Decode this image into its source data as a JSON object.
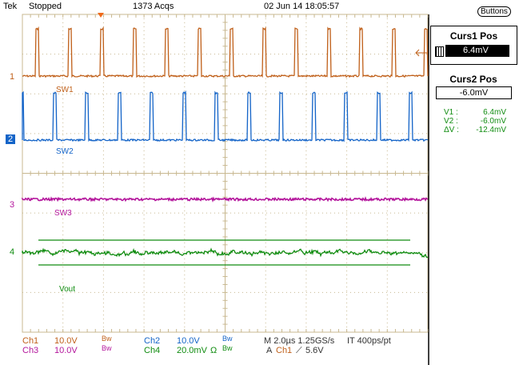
{
  "header": {
    "brand": "Tek",
    "state": "Stopped",
    "acqs": "1373 Acqs",
    "datetime": "02 Jun 14 18:05:57",
    "buttons_label": "Buttons"
  },
  "channels": [
    {
      "marker": "1",
      "label": "SW1",
      "color": "#c0601a"
    },
    {
      "marker": "2",
      "label": "SW2",
      "color": "#1464c8"
    },
    {
      "marker": "3",
      "label": "SW3",
      "color": "#b4169c"
    },
    {
      "marker": "4",
      "label": "Vout",
      "color": "#108c10"
    }
  ],
  "cursors": {
    "curs1_title": "Curs1 Pos",
    "curs1_value": "6.4mV",
    "curs2_title": "Curs2 Pos",
    "curs2_value": "-6.0mV",
    "readouts": [
      {
        "k": "V1 :",
        "v": "6.4mV"
      },
      {
        "k": "V2 :",
        "v": "-6.0mV"
      },
      {
        "k": "ΔV :",
        "v": "-12.4mV"
      }
    ]
  },
  "footer": {
    "ch1": "Ch1",
    "ch1_scale": "10.0V",
    "ch1_bw": "Bw",
    "ch2": "Ch2",
    "ch2_scale": "10.0V",
    "ch2_bw": "Bw",
    "ch3": "Ch3",
    "ch3_scale": "10.0V",
    "ch3_bw": "Bw",
    "ch4": "Ch4",
    "ch4_scale": "20.0mV",
    "ch4_ohm": "Ω",
    "ch4_bw": "Bw",
    "timebase": "M 2.0µs 1.25GS/s",
    "record": "IT 400ps/pt",
    "trig_a": "A",
    "trig_src": "Ch1",
    "trig_slope": "⟋",
    "trig_level": "5.6V"
  }
}
